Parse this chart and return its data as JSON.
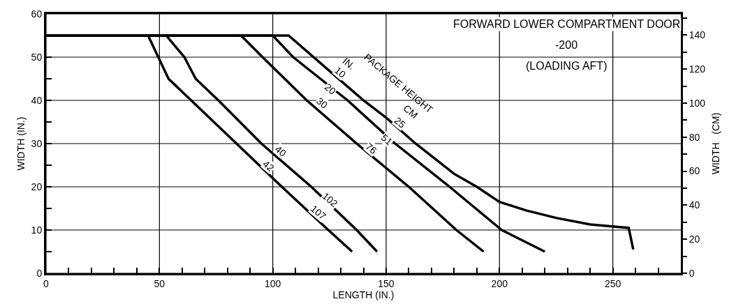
{
  "chart_data": {
    "type": "line",
    "title": "FORWARD LOWER COMPARTMENT DOOR",
    "subtitle": "-200",
    "xlabel": "LENGTH (IN.)",
    "ylabel": "WIDTH (IN.)",
    "y2label": "WIDTH   (CM)",
    "xlim": [
      0,
      280
    ],
    "ylim": [
      0,
      60
    ],
    "y2lim": [
      0,
      152.4
    ],
    "xticks": [
      0,
      {
        "value": 10,
        "label": null
      },
      {
        "value": 20,
        "label": null
      },
      {
        "value": 30,
        "label": null
      },
      {
        "value": 40,
        "label": null
      },
      50,
      {
        "value": 60,
        "label": null
      },
      {
        "value": 70,
        "label": null
      },
      {
        "value": 80,
        "label": null
      },
      {
        "value": 90,
        "label": null
      },
      100,
      {
        "value": 110,
        "label": null
      },
      {
        "value": 120,
        "label": null
      },
      {
        "value": 130,
        "label": null
      },
      {
        "value": 140,
        "label": null
      },
      150,
      {
        "value": 160,
        "label": null
      },
      {
        "value": 170,
        "label": null
      },
      {
        "value": 180,
        "label": null
      },
      {
        "value": 190,
        "label": null
      },
      200,
      {
        "value": 210,
        "label": null
      },
      {
        "value": 220,
        "label": null
      },
      {
        "value": 230,
        "label": null
      },
      {
        "value": 240,
        "label": null
      },
      250,
      {
        "value": 260,
        "label": null
      },
      {
        "value": 270,
        "label": null
      }
    ],
    "yticks": [
      0,
      {
        "value": 5,
        "label": null
      },
      10,
      {
        "value": 15,
        "label": null
      },
      20,
      {
        "value": 25,
        "label": null
      },
      30,
      {
        "value": 35,
        "label": null
      },
      40,
      {
        "value": 45,
        "label": null
      },
      50,
      {
        "value": 55,
        "label": null
      },
      60
    ],
    "y2ticks": [
      0,
      {
        "value": 10,
        "label": null
      },
      20,
      {
        "value": 30,
        "label": null
      },
      40,
      {
        "value": 50,
        "label": null
      },
      60,
      {
        "value": 70,
        "label": null
      },
      80,
      {
        "value": 90,
        "label": null
      },
      100,
      {
        "value": 110,
        "label": null
      },
      120,
      {
        "value": 130,
        "label": null
      },
      140,
      {
        "value": 150,
        "label": null
      }
    ],
    "grid": true,
    "marker": "none",
    "line_style": "solid",
    "series": [
      {
        "color": "#000000",
        "x": [
          0,
          107,
          140,
          150,
          163,
          180,
          190,
          200,
          212,
          225,
          240,
          257,
          259
        ],
        "values": [
          55,
          55,
          40,
          36,
          30,
          23,
          20,
          16.5,
          14.5,
          12.8,
          11.3,
          10.5,
          5.5
        ]
      },
      {
        "color": "#000000",
        "x": [
          0,
          100,
          109,
          133,
          154,
          178,
          201,
          220
        ],
        "values": [
          55,
          55,
          50,
          40,
          30,
          20,
          10,
          5
        ]
      },
      {
        "color": "#000000",
        "x": [
          0,
          86,
          95.5,
          115,
          137,
          160,
          181,
          193
        ],
        "values": [
          55,
          55,
          50,
          40,
          30,
          20,
          10,
          5
        ]
      },
      {
        "color": "#000000",
        "x": [
          0,
          53,
          61,
          66,
          76,
          95,
          117,
          137,
          146
        ],
        "values": [
          55,
          55,
          50,
          45,
          40,
          30,
          20,
          10,
          5
        ]
      },
      {
        "color": "#000000",
        "x": [
          0,
          45,
          49.5,
          54,
          64,
          84,
          104,
          124.5,
          135
        ],
        "values": [
          55,
          55,
          50,
          45,
          40,
          30,
          20,
          10,
          5
        ]
      }
    ],
    "annotations": [
      "(LOADING AFT)",
      "PACKAGE HEIGHT",
      "IN.",
      "CM",
      {
        "text": "10",
        "x": 129.8,
        "y": 46.4
      },
      {
        "text": "20",
        "x": 125.5,
        "y": 42.6
      },
      {
        "text": "30",
        "x": 121.8,
        "y": 39.3
      },
      {
        "text": "40",
        "x": 103.6,
        "y": 28.2
      },
      {
        "text": "42",
        "x": 98.2,
        "y": 24.9
      },
      {
        "text": "25",
        "x": 156.2,
        "y": 34.9
      },
      {
        "text": "51",
        "x": 150.2,
        "y": 30.9
      },
      {
        "text": "76",
        "x": 143.5,
        "y": 28.9
      },
      {
        "text": "102",
        "x": 125.5,
        "y": 17
      },
      {
        "text": "107",
        "x": 120.2,
        "y": 14
      }
    ]
  }
}
